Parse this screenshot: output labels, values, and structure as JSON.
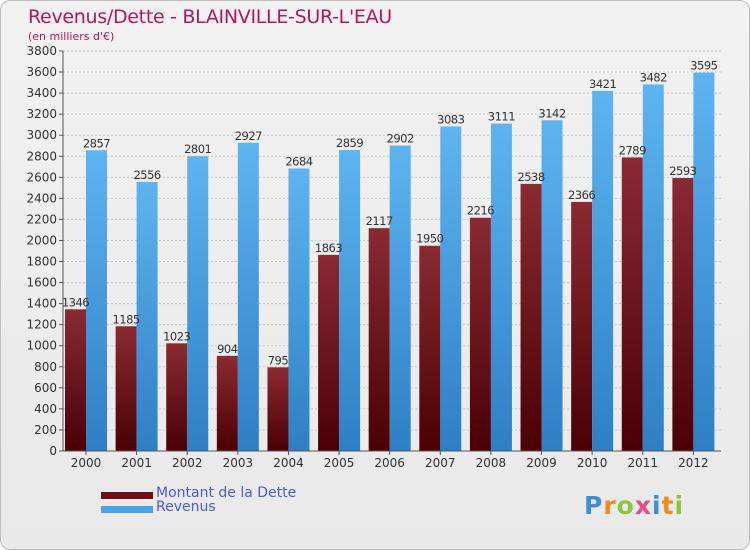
{
  "header": {
    "title": "Revenus/Dette - BLAINVILLE-SUR-L'EAU",
    "subtitle": "(en milliers d'€)"
  },
  "legend": {
    "debt_label": "Montant de la Dette",
    "revenue_label": "Revenus"
  },
  "brand": {
    "logo": "Proxiti"
  },
  "colors": {
    "debt": "#6b0f14",
    "revenue": "#4aa3e6",
    "title": "#b5175e",
    "legend_text": "#4a5cd6"
  },
  "chart_data": {
    "type": "bar",
    "title": "Revenus/Dette - BLAINVILLE-SUR-L'EAU",
    "subtitle": "(en milliers d'€)",
    "categories": [
      "2000",
      "2001",
      "2002",
      "2003",
      "2004",
      "2005",
      "2006",
      "2007",
      "2008",
      "2009",
      "2010",
      "2011",
      "2012"
    ],
    "series": [
      {
        "name": "Montant de la Dette",
        "values": [
          1346,
          1185,
          1023,
          904,
          795,
          1863,
          2117,
          1950,
          2216,
          2538,
          2366,
          2789,
          2593
        ]
      },
      {
        "name": "Revenus",
        "values": [
          2857,
          2556,
          2801,
          2927,
          2684,
          2859,
          2902,
          3083,
          3111,
          3142,
          3421,
          3482,
          3595
        ]
      }
    ],
    "ylim": [
      0,
      3800
    ],
    "yticks": [
      0,
      200,
      400,
      600,
      800,
      1000,
      1200,
      1400,
      1600,
      1800,
      2000,
      2200,
      2400,
      2600,
      2800,
      3000,
      3200,
      3400,
      3600,
      3800
    ],
    "grid": true,
    "legend_position": "bottom-left"
  }
}
